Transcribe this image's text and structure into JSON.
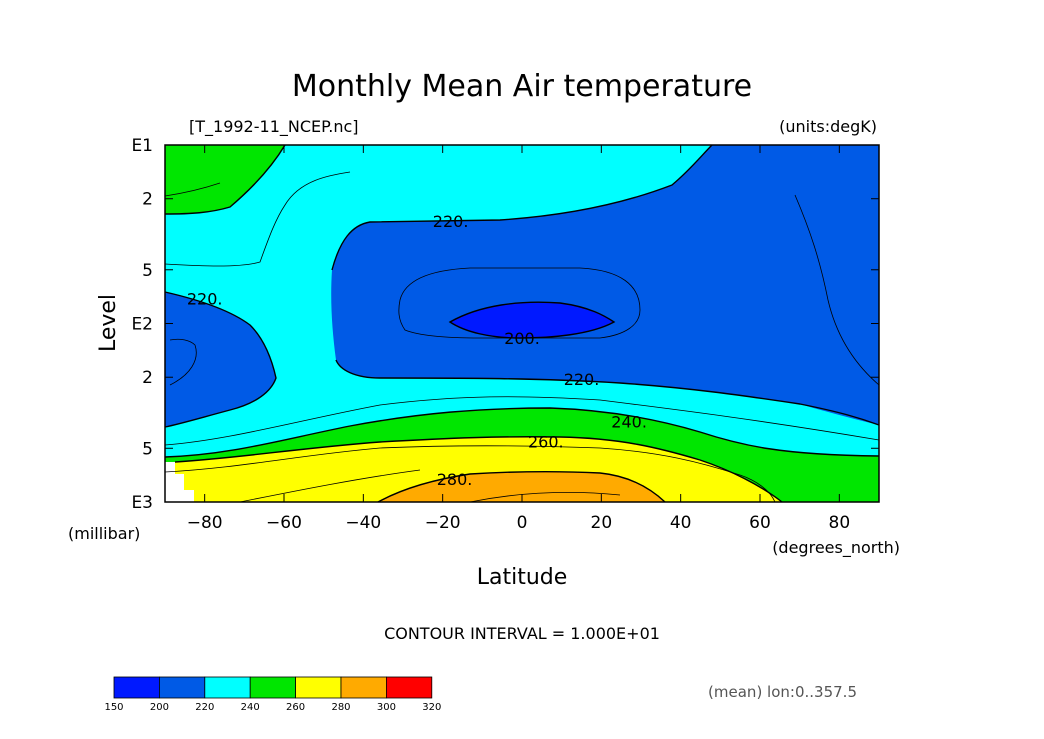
{
  "chart_data": {
    "type": "heatmap",
    "title": "Monthly Mean Air temperature",
    "source_file": "[T_1992-11_NCEP.nc]",
    "units": "(units:degK)",
    "xlabel": "Latitude",
    "x_units": "(degrees_north)",
    "ylabel": "Level",
    "y_units": "(millibar)",
    "xlim": [
      -90,
      90
    ],
    "ylim_log10": [
      1,
      3
    ],
    "x_ticks": [
      -80,
      -60,
      -40,
      -20,
      0,
      20,
      40,
      60,
      80
    ],
    "y_tick_labels": [
      {
        "log10": 1,
        "label": "E1"
      },
      {
        "log10": 1.301,
        "label": "2"
      },
      {
        "log10": 1.699,
        "label": "5"
      },
      {
        "log10": 2,
        "label": "E2"
      },
      {
        "log10": 2.301,
        "label": "2"
      },
      {
        "log10": 2.699,
        "label": "5"
      },
      {
        "log10": 3,
        "label": "E3"
      }
    ],
    "contour_interval_text": "CONTOUR INTERVAL = 1.000E+01",
    "mean_text": "(mean) lon:0..357.5",
    "levels": [
      150,
      200,
      220,
      240,
      260,
      280,
      300,
      320
    ],
    "level_colors": [
      "#0019ff",
      "#005ae6",
      "#00ffff",
      "#00e600",
      "#ffff00",
      "#ffaa00",
      "#ff0000"
    ],
    "contour_labels": [
      {
        "text": "220.",
        "lat": -18,
        "log10": 1.425
      },
      {
        "text": "220.",
        "lat": -80,
        "log10": 1.86
      },
      {
        "text": "200.",
        "lat": 0,
        "log10": 2.08
      },
      {
        "text": "220.",
        "lat": 15,
        "log10": 2.31
      },
      {
        "text": "240.",
        "lat": 27,
        "log10": 2.55
      },
      {
        "text": "260.",
        "lat": 6,
        "log10": 2.66
      },
      {
        "text": "280.",
        "lat": -17,
        "log10": 2.87
      }
    ]
  }
}
